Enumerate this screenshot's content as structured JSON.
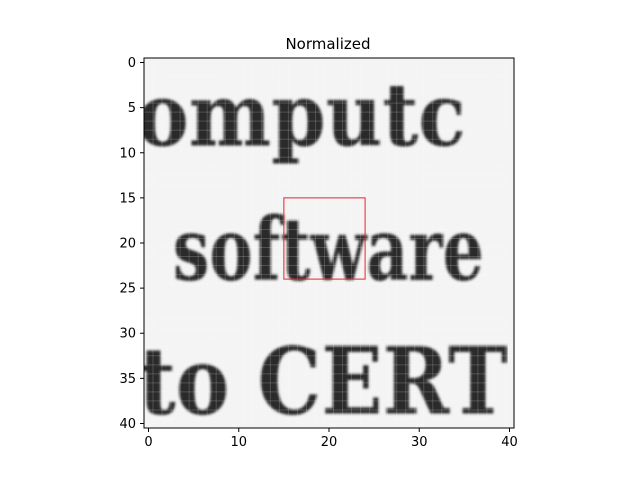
{
  "chart_data": {
    "type": "heatmap",
    "title": "Normalized",
    "colormap": "gray",
    "x_range": [
      0,
      40
    ],
    "y_range": [
      0,
      40
    ],
    "x_ticks": [
      0,
      10,
      20,
      30,
      40
    ],
    "y_ticks": [
      0,
      5,
      10,
      15,
      20,
      25,
      30,
      35,
      40
    ],
    "image_text_rows": [
      "omputc",
      "software",
      "to CERT"
    ],
    "highlight_box": {
      "x0": 15,
      "y0": 15,
      "x1": 24,
      "y1": 24,
      "color": "#e8232a"
    }
  }
}
